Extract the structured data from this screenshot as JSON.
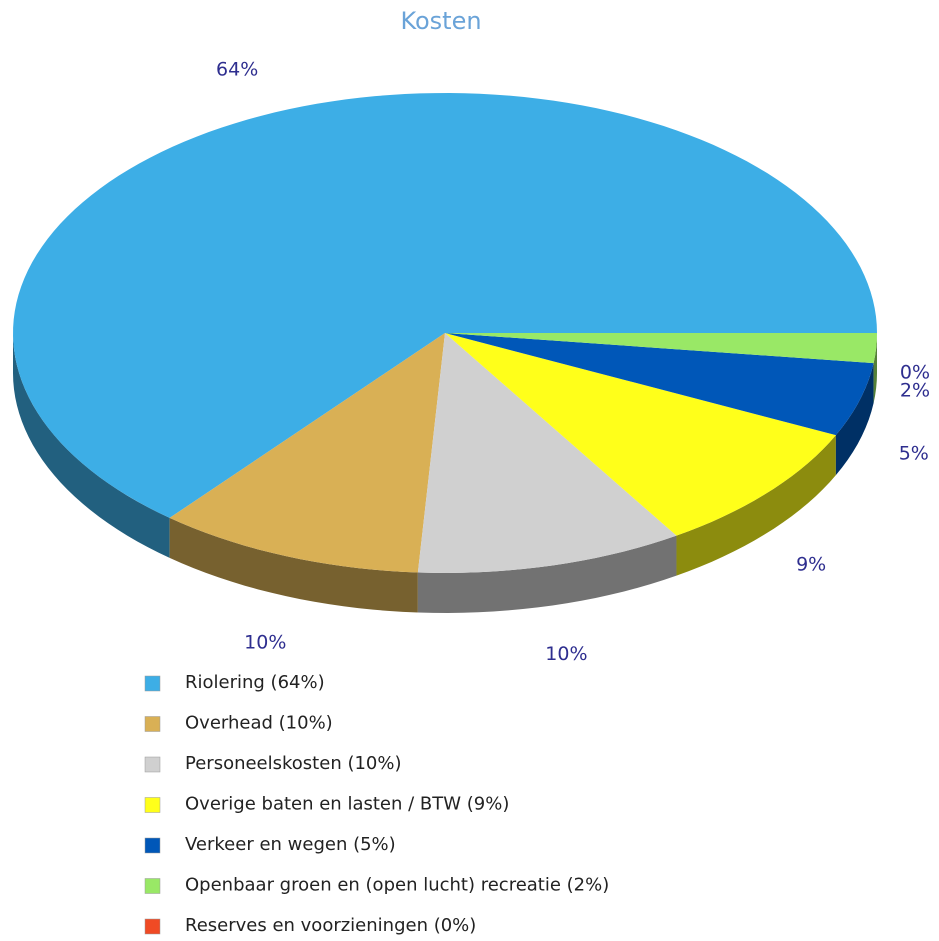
{
  "chart_data": {
    "type": "pie3d",
    "title": "Kosten",
    "categories": [
      "Riolering (64%)",
      "Overhead (10%)",
      "Personeelskosten (10%)",
      "Overige baten en lasten / BTW (9%)",
      "Verkeer en wegen (5%)",
      "Openbaar groen en (open lucht) recreatie (2%)",
      "Reserves en voorzieningen (0%)"
    ],
    "values": [
      64,
      10,
      10,
      9,
      5,
      2,
      0
    ],
    "value_labels": [
      "64%",
      "10%",
      "10%",
      "9%",
      "5%",
      "2%",
      "0%"
    ],
    "colors": [
      "#3daee6",
      "#d9b055",
      "#d0d0d0",
      "#ffff1a",
      "#0057b8",
      "#99e866",
      "#f04a24"
    ],
    "legend": "bottom"
  }
}
